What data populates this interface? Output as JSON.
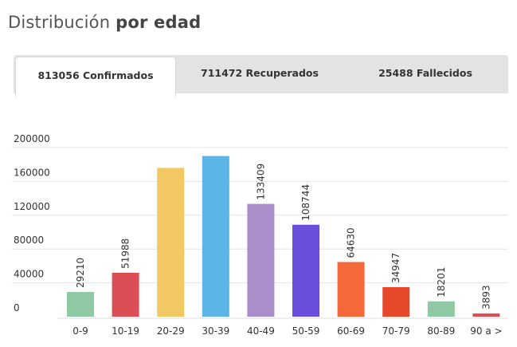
{
  "header": {
    "title_regular": "Distribución",
    "title_bold": "por edad"
  },
  "tabs": [
    {
      "label": "813056 Confirmados",
      "active": true
    },
    {
      "label": "711472 Recuperados",
      "active": false
    },
    {
      "label": "25488 Fallecidos",
      "active": false
    }
  ],
  "chart_data": {
    "type": "bar",
    "categories": [
      "0-9",
      "10-19",
      "20-29",
      "30-39",
      "40-49",
      "50-59",
      "60-69",
      "70-79",
      "80-89",
      "90 a >"
    ],
    "values": [
      29210,
      51988,
      176000,
      190000,
      133409,
      108744,
      64630,
      34947,
      18201,
      3893
    ],
    "data_labels": [
      "29210",
      "51988",
      "",
      "",
      "133409",
      "108744",
      "64630",
      "34947",
      "18201",
      "3893"
    ],
    "colors": [
      "#8fc9a3",
      "#dc4e55",
      "#f1c862",
      "#5db4e6",
      "#a98fca",
      "#6a4fdc",
      "#f5683a",
      "#e5492a",
      "#8fc9a3",
      "#dc4e55"
    ],
    "y_ticks": [
      0,
      40000,
      80000,
      120000,
      160000,
      200000
    ],
    "ylim": [
      0,
      200000
    ],
    "grid": true,
    "xlabel": "",
    "ylabel": ""
  }
}
